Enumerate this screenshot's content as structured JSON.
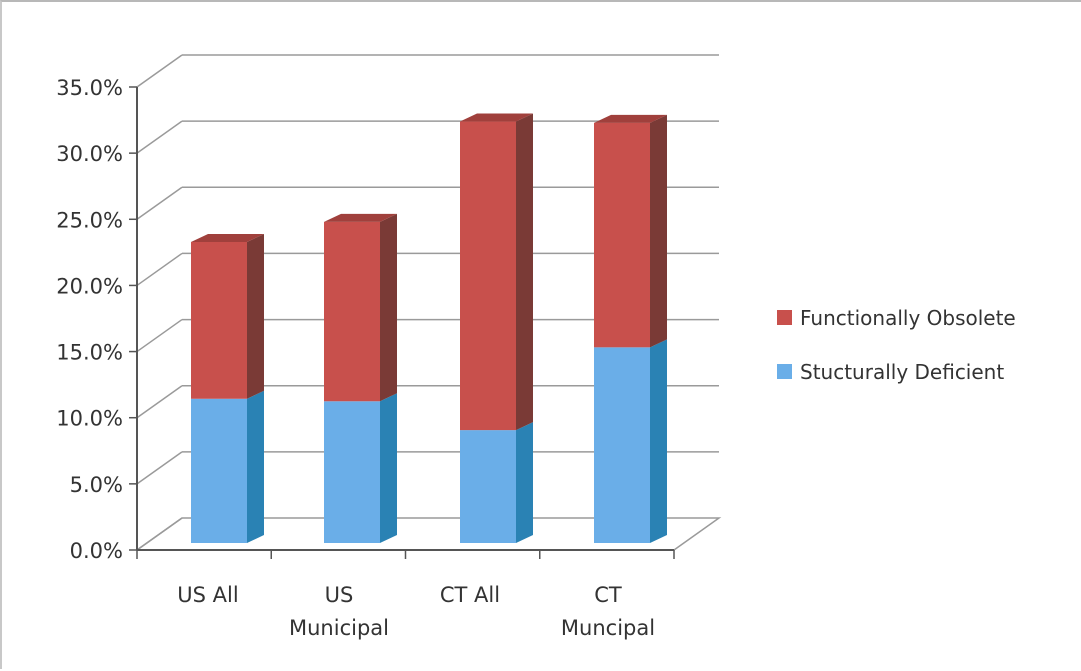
{
  "chart_data": {
    "type": "bar",
    "stacked": true,
    "three_d": true,
    "categories": [
      [
        "US All"
      ],
      [
        "US",
        "Municipal"
      ],
      [
        "CT All"
      ],
      [
        "CT",
        "Muncipal"
      ]
    ],
    "series": [
      {
        "name": "Stucturally Deficient",
        "values": [
          11.5,
          11.3,
          9.0,
          15.6
        ],
        "color": "#6aaee8"
      },
      {
        "name": "Functionally Obsolete",
        "values": [
          12.5,
          14.3,
          24.6,
          17.9
        ],
        "color": "#c8504c"
      }
    ],
    "legend_order": [
      1,
      0
    ],
    "y_ticks": [
      "0.0%",
      "5.0%",
      "10.0%",
      "15.0%",
      "20.0%",
      "25.0%",
      "30.0%",
      "35.0%"
    ],
    "ylim": [
      0,
      35
    ],
    "grid": true,
    "legend_position": "right"
  }
}
